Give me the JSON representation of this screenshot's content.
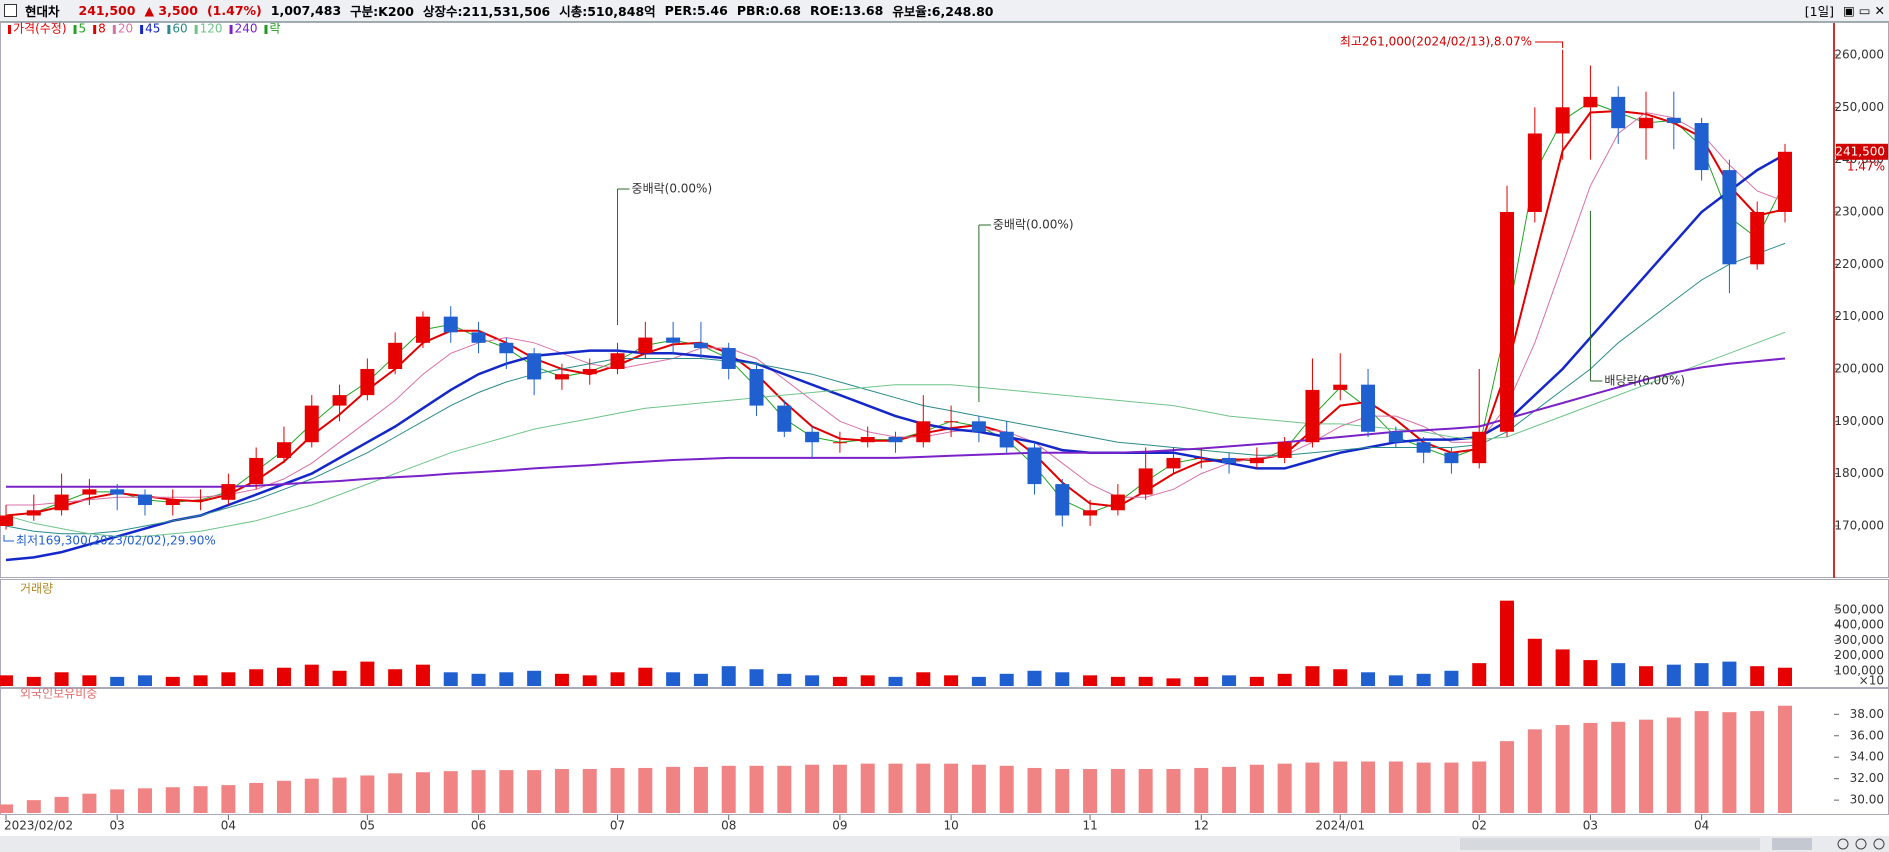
{
  "header": {
    "name": "현대차",
    "price": "241,500",
    "change": "▲ 3,500",
    "change_pct": "(1.47%)",
    "volume": "1,007,483",
    "class": "구분:K200",
    "shares": "상장수:211,531,506",
    "cap": "시총:510,848억",
    "per": "PER:5.46",
    "pbr": "PBR:0.68",
    "roe": "ROE:13.68",
    "reserve": "유보율:6,248.80",
    "period": "[1일]"
  },
  "chart_data": [
    {
      "type": "candlestick",
      "price_name": "가격(수정)",
      "event_name": "락",
      "event_color": "#1f9a1f",
      "up_color": "#e60000",
      "down_color": "#1f5fd0",
      "last_label": "241,500",
      "last_change": "1.47%",
      "categories": [
        "2023/02/02",
        null,
        null,
        null,
        "03",
        null,
        null,
        null,
        "04",
        null,
        null,
        null,
        null,
        "05",
        null,
        null,
        null,
        "06",
        null,
        null,
        null,
        null,
        "07",
        null,
        null,
        null,
        "08",
        null,
        null,
        null,
        "09",
        null,
        null,
        null,
        "10",
        null,
        null,
        null,
        null,
        "11",
        null,
        null,
        null,
        "12",
        null,
        null,
        null,
        null,
        "2024/01",
        null,
        null,
        null,
        null,
        "02",
        null,
        null,
        null,
        "03",
        null,
        null,
        null,
        "04",
        null,
        null,
        null
      ],
      "open": [
        170000,
        172000,
        173000,
        176000,
        177000,
        176000,
        174000,
        175000,
        175000,
        178000,
        183000,
        186000,
        193000,
        195000,
        200000,
        205000,
        210000,
        207000,
        205000,
        203000,
        198000,
        199000,
        200000,
        203000,
        206000,
        205000,
        204000,
        200000,
        193000,
        188000,
        186000,
        186000,
        187000,
        186000,
        190000,
        190000,
        188000,
        185000,
        178000,
        172000,
        173000,
        176000,
        181000,
        183000,
        183000,
        182000,
        183000,
        186000,
        196000,
        197000,
        188000,
        186000,
        184000,
        182000,
        188000,
        230000,
        245000,
        250000,
        252000,
        246000,
        248000,
        247000,
        238000,
        220000,
        230000
      ],
      "high": [
        174000,
        176000,
        180000,
        179000,
        178000,
        177000,
        177000,
        177000,
        180000,
        185000,
        189000,
        195000,
        197000,
        202000,
        207000,
        211000,
        212000,
        209000,
        206000,
        204000,
        201000,
        202000,
        205000,
        209000,
        209000,
        209000,
        205000,
        201000,
        194000,
        189000,
        188000,
        189000,
        188000,
        195000,
        193000,
        191000,
        190000,
        186000,
        179000,
        175000,
        178000,
        185000,
        185000,
        185000,
        184000,
        185000,
        187000,
        202000,
        203000,
        200000,
        189000,
        187000,
        185000,
        200000,
        235000,
        250000,
        261000,
        258000,
        254000,
        253000,
        253000,
        248000,
        240000,
        232000,
        243000
      ],
      "low": [
        169300,
        171000,
        172000,
        174000,
        173000,
        172000,
        172000,
        173000,
        174000,
        177000,
        182000,
        185000,
        190000,
        194000,
        199000,
        204000,
        205000,
        203000,
        200000,
        195000,
        196000,
        197000,
        199000,
        202000,
        203000,
        202000,
        198000,
        191000,
        187000,
        183000,
        184000,
        185000,
        184000,
        185000,
        187000,
        186000,
        184000,
        176000,
        169900,
        170000,
        172000,
        175000,
        180000,
        181000,
        180000,
        181000,
        182000,
        185000,
        194000,
        187000,
        185000,
        182000,
        180000,
        181000,
        187000,
        228000,
        240000,
        240000,
        243000,
        240000,
        242000,
        236000,
        214500,
        219000,
        228000
      ],
      "close": [
        172000,
        173000,
        176000,
        177000,
        176000,
        174000,
        175000,
        175000,
        178000,
        183000,
        186000,
        193000,
        195000,
        200000,
        205000,
        210000,
        207000,
        205000,
        203000,
        198000,
        199000,
        200000,
        203000,
        206000,
        205000,
        204000,
        200000,
        193000,
        188000,
        186000,
        186000,
        187000,
        186000,
        190000,
        190000,
        188000,
        185000,
        178000,
        172000,
        173000,
        176000,
        181000,
        183000,
        183000,
        182000,
        183000,
        186000,
        196000,
        197000,
        188000,
        186000,
        184000,
        182000,
        188000,
        230000,
        245000,
        250000,
        252000,
        246000,
        248000,
        247000,
        238000,
        220000,
        230000,
        241500
      ],
      "series": [
        {
          "name": "5",
          "color": "#22a322",
          "width": 1,
          "values": [
            172000,
            172500,
            174500,
            176500,
            176500,
            175000,
            174500,
            175000,
            176500,
            180500,
            184500,
            189500,
            194000,
            197500,
            202500,
            207500,
            208500,
            206000,
            204000,
            200500,
            198500,
            199500,
            201500,
            204500,
            205500,
            204500,
            202000,
            196500,
            190500,
            187000,
            186000,
            186500,
            186500,
            188000,
            190000,
            189000,
            186500,
            181500,
            175000,
            172500,
            174500,
            178500,
            182000,
            183000,
            182500,
            182500,
            184500,
            191000,
            196500,
            192500,
            187000,
            185000,
            183000,
            185000,
            209000,
            237500,
            247500,
            251000,
            249000,
            247000,
            247500,
            242500,
            229000,
            225000,
            235800
          ]
        },
        {
          "name": "8",
          "color": "#e00000",
          "width": 2,
          "values": [
            172000,
            172500,
            173700,
            175300,
            176300,
            175700,
            175000,
            174700,
            176000,
            178700,
            182300,
            187300,
            191300,
            196000,
            200000,
            205000,
            207300,
            207300,
            205000,
            202000,
            200000,
            199000,
            200700,
            203000,
            204700,
            205000,
            203000,
            199000,
            193700,
            189000,
            186700,
            186300,
            186300,
            187700,
            188700,
            189300,
            187700,
            183700,
            178300,
            174300,
            173700,
            176700,
            180000,
            182300,
            182700,
            182700,
            183700,
            188300,
            193000,
            193700,
            190300,
            186000,
            184000,
            184700,
            200000,
            221000,
            241700,
            249000,
            249300,
            248700,
            247000,
            244300,
            235000,
            229300,
            230500
          ]
        },
        {
          "name": "20",
          "color": "#d870a8",
          "width": 1,
          "values": [
            174000,
            174000,
            174500,
            175000,
            175500,
            175500,
            175500,
            175500,
            176000,
            177000,
            179000,
            182000,
            186000,
            190000,
            194000,
            199000,
            203000,
            205000,
            206000,
            205000,
            203000,
            201000,
            200000,
            201000,
            202000,
            204000,
            204000,
            202000,
            198000,
            194000,
            190000,
            188000,
            187000,
            187000,
            188000,
            188500,
            188000,
            186000,
            182000,
            178000,
            175500,
            175500,
            177000,
            180000,
            182000,
            183000,
            183500,
            186000,
            189000,
            191000,
            191000,
            189000,
            186000,
            186000,
            193000,
            205000,
            220000,
            235000,
            245000,
            249000,
            248000,
            245000,
            239000,
            234000,
            232000
          ]
        },
        {
          "name": "45",
          "color": "#1428c8",
          "width": 2.5,
          "values": [
            163500,
            164000,
            165000,
            166500,
            168000,
            169500,
            171000,
            172000,
            174000,
            176000,
            178000,
            180000,
            183000,
            186000,
            189000,
            192500,
            196000,
            199000,
            201000,
            202500,
            203000,
            203500,
            203500,
            203000,
            203000,
            202500,
            202000,
            201000,
            199000,
            197000,
            195000,
            193000,
            191000,
            189500,
            188500,
            188000,
            187000,
            186000,
            184500,
            184000,
            184000,
            184000,
            184000,
            183000,
            182000,
            181000,
            181000,
            182500,
            184000,
            185000,
            186000,
            186500,
            186500,
            187000,
            190000,
            195000,
            200000,
            206000,
            212000,
            218000,
            224000,
            230000,
            234000,
            238000,
            241000
          ]
        },
        {
          "name": "60",
          "color": "#2a8a8a",
          "width": 1,
          "values": [
            170000,
            169000,
            168500,
            168500,
            169000,
            170000,
            171000,
            172000,
            173500,
            175000,
            177000,
            179000,
            181500,
            184000,
            187000,
            190000,
            193000,
            195500,
            197500,
            199000,
            200000,
            201000,
            202000,
            202000,
            202000,
            202000,
            201500,
            201000,
            200000,
            199000,
            197500,
            196000,
            194500,
            193000,
            192000,
            191000,
            190000,
            189000,
            188000,
            187000,
            186000,
            185500,
            185000,
            184500,
            184000,
            183500,
            183500,
            184000,
            184500,
            185000,
            185000,
            185000,
            185000,
            185500,
            188000,
            192000,
            196000,
            200000,
            205000,
            209000,
            213000,
            217000,
            220000,
            222000,
            224000
          ]
        },
        {
          "name": "120",
          "color": "#6fc48a",
          "width": 1,
          "values": [
            172000,
            170500,
            169500,
            168500,
            168000,
            168000,
            168500,
            169000,
            170000,
            171000,
            172500,
            174000,
            176000,
            178000,
            180000,
            182000,
            184000,
            185500,
            187000,
            188500,
            189500,
            190500,
            191500,
            192500,
            193000,
            193500,
            194000,
            194500,
            195000,
            195500,
            196000,
            196500,
            197000,
            197000,
            197000,
            196500,
            196000,
            195500,
            195000,
            194500,
            194000,
            193500,
            193000,
            192000,
            191000,
            190500,
            190000,
            189500,
            189500,
            189000,
            188500,
            188000,
            187000,
            186500,
            187000,
            189000,
            191000,
            193000,
            195000,
            197000,
            199000,
            201000,
            203000,
            205000,
            207000
          ]
        },
        {
          "name": "240",
          "color": "#7a22c8",
          "width": 2,
          "values": [
            177500,
            177500,
            177500,
            177500,
            177500,
            177500,
            177500,
            177500,
            177500,
            177700,
            178000,
            178300,
            178600,
            179000,
            179300,
            179600,
            180000,
            180300,
            180600,
            181000,
            181300,
            181600,
            182000,
            182300,
            182600,
            182800,
            183000,
            183000,
            183000,
            183000,
            183000,
            183000,
            183000,
            183200,
            183400,
            183600,
            183800,
            184000,
            184000,
            184000,
            184000,
            184200,
            184500,
            184800,
            185200,
            185600,
            186000,
            186500,
            187000,
            187500,
            188000,
            188300,
            188600,
            189000,
            190500,
            192000,
            193500,
            195000,
            196500,
            198000,
            199300,
            200300,
            201000,
            201500,
            202000
          ]
        }
      ],
      "ylim": [
        160000,
        265000
      ],
      "yticks": [
        {
          "value": 170000,
          "label": "170,000"
        },
        {
          "value": 180000,
          "label": "180,000"
        },
        {
          "value": 190000,
          "label": "190,000"
        },
        {
          "value": 200000,
          "label": "200,000"
        },
        {
          "value": 210000,
          "label": "210,000"
        },
        {
          "value": 220000,
          "label": "220,000"
        },
        {
          "value": 230000,
          "label": "230,000"
        },
        {
          "value": 240000,
          "label": "240,000"
        },
        {
          "value": 250000,
          "label": "250,000"
        },
        {
          "value": 260000,
          "label": "260,000"
        }
      ],
      "annotations": [
        "최고261,000(2024/02/13),8.07%",
        "최저169,300(2023/02/02),29.90%",
        "중배락(0.00%)",
        "중배락(0.00%)",
        "배당락(0.00%)"
      ]
    },
    {
      "type": "bar",
      "title": "거래량",
      "unit_label": "×10",
      "values": [
        70000,
        60000,
        90000,
        70000,
        60000,
        70000,
        60000,
        70000,
        90000,
        110000,
        120000,
        140000,
        100000,
        160000,
        110000,
        140000,
        90000,
        80000,
        90000,
        100000,
        80000,
        70000,
        90000,
        120000,
        90000,
        80000,
        130000,
        110000,
        80000,
        70000,
        60000,
        70000,
        60000,
        90000,
        70000,
        60000,
        80000,
        100000,
        90000,
        70000,
        60000,
        60000,
        50000,
        60000,
        70000,
        60000,
        80000,
        130000,
        110000,
        90000,
        70000,
        80000,
        100000,
        150000,
        560000,
        310000,
        240000,
        170000,
        150000,
        130000,
        140000,
        150000,
        160000,
        130000,
        120000
      ],
      "ylim": [
        0,
        630000
      ],
      "yticks": [
        {
          "value": 100000,
          "label": "100,000"
        },
        {
          "value": 200000,
          "label": "200,000"
        },
        {
          "value": 300000,
          "label": "300,000"
        },
        {
          "value": 400000,
          "label": "400,000"
        },
        {
          "value": 500000,
          "label": "500,000"
        }
      ]
    },
    {
      "type": "bar",
      "title": "외국인보유비중",
      "color": "#f08484",
      "values": [
        29.6,
        30.0,
        30.3,
        30.6,
        31.0,
        31.1,
        31.2,
        31.3,
        31.4,
        31.6,
        31.8,
        32.0,
        32.1,
        32.3,
        32.5,
        32.6,
        32.7,
        32.8,
        32.8,
        32.8,
        32.9,
        32.9,
        33.0,
        33.0,
        33.1,
        33.1,
        33.2,
        33.2,
        33.2,
        33.3,
        33.3,
        33.4,
        33.4,
        33.4,
        33.4,
        33.3,
        33.2,
        33.0,
        32.9,
        32.9,
        32.9,
        32.9,
        32.9,
        33.0,
        33.1,
        33.3,
        33.4,
        33.5,
        33.6,
        33.6,
        33.6,
        33.5,
        33.5,
        33.6,
        35.5,
        36.6,
        37.0,
        37.2,
        37.3,
        37.5,
        37.7,
        38.3,
        38.2,
        38.3,
        38.8
      ],
      "ylim": [
        28.8,
        39.8
      ],
      "yticks": [
        {
          "value": 30,
          "label": "30.00"
        },
        {
          "value": 32,
          "label": "32.00"
        },
        {
          "value": 34,
          "label": "34.00"
        },
        {
          "value": 36,
          "label": "36.00"
        },
        {
          "value": 38,
          "label": "38.00"
        }
      ]
    }
  ]
}
